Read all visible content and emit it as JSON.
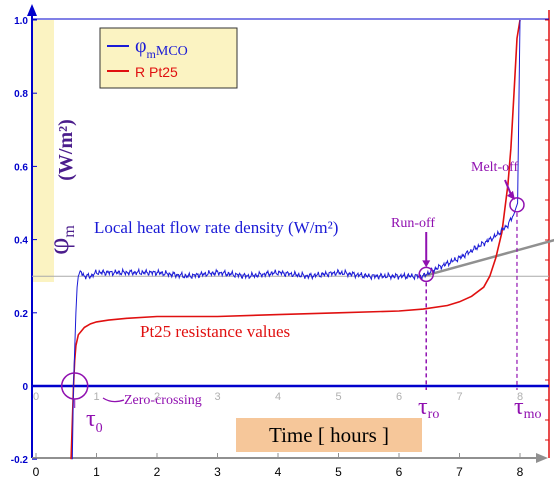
{
  "chart_data": {
    "type": "line",
    "xlim": [
      0,
      8.6
    ],
    "ylim": [
      -0.2,
      1.0
    ],
    "x_ticks": [
      "0",
      "1",
      "2",
      "3",
      "4",
      "5",
      "6",
      "7",
      "8"
    ],
    "x_inner_ticks": [
      "0",
      "1",
      "2",
      "3",
      "4",
      "5",
      "6",
      "7",
      "8"
    ],
    "y_ticks": [
      "-0.2",
      "0",
      "0.2",
      "0.4",
      "0.6",
      "0.8",
      "1.0"
    ],
    "ylabel_unit": "(W/m²)",
    "ylabel_symbol": "φ",
    "ylabel_sub": "m",
    "xlabel": "Time [ hours ]",
    "grid": false,
    "legend_position": "top-left",
    "legend": [
      {
        "symbol": "φ",
        "sub": "m",
        "label": "MCO",
        "color": "#1a1ad6"
      },
      {
        "label": "R Pt25",
        "color": "#e01010"
      }
    ],
    "colors": {
      "flow": "#1a1ad6",
      "resistance": "#e01010",
      "axis": "#0000cc",
      "annotation": "#9010b0",
      "trend": "#909090",
      "reference": "#aaaaaa",
      "label_box": "#f6c79a",
      "legend_box": "#fbf3c2",
      "ylabel_band": "#fbf3c2"
    },
    "series": [
      {
        "name": "φmMCO",
        "color": "#1a1ad6",
        "x": [
          0.6,
          0.62,
          0.64,
          0.66,
          0.68,
          0.7,
          0.72,
          0.75,
          0.8,
          0.9,
          1.0,
          1.5,
          2.0,
          2.5,
          3.0,
          3.5,
          4.0,
          4.5,
          5.0,
          5.5,
          6.0,
          6.4,
          6.6,
          7.0,
          7.2,
          7.4,
          7.6,
          7.8,
          7.9,
          7.96,
          8.0
        ],
        "y": [
          -0.2,
          0.0,
          0.1,
          0.2,
          0.27,
          0.3,
          0.31,
          0.31,
          0.3,
          0.3,
          0.31,
          0.31,
          0.31,
          0.3,
          0.31,
          0.3,
          0.31,
          0.3,
          0.31,
          0.3,
          0.3,
          0.3,
          0.32,
          0.35,
          0.37,
          0.39,
          0.41,
          0.44,
          0.47,
          0.5,
          1.0
        ]
      },
      {
        "name": "R Pt25",
        "color": "#e01010",
        "x": [
          0.58,
          0.6,
          0.62,
          0.64,
          0.66,
          0.7,
          0.8,
          0.9,
          1.0,
          1.2,
          1.5,
          2.0,
          3.0,
          4.0,
          5.0,
          6.0,
          6.4,
          6.8,
          7.0,
          7.2,
          7.4,
          7.5,
          7.6,
          7.7,
          7.8,
          7.85,
          7.9,
          7.95,
          8.0
        ],
        "y": [
          -0.2,
          -0.1,
          0.0,
          0.07,
          0.11,
          0.14,
          0.16,
          0.17,
          0.175,
          0.18,
          0.185,
          0.19,
          0.19,
          0.195,
          0.2,
          0.205,
          0.21,
          0.22,
          0.23,
          0.245,
          0.27,
          0.3,
          0.35,
          0.42,
          0.55,
          0.65,
          0.8,
          0.95,
          1.0
        ]
      }
    ],
    "trend_line": {
      "x": [
        6.4,
        8.6
      ],
      "y": [
        0.3,
        0.4
      ]
    },
    "reference_line_y": 0.3,
    "annotations": {
      "flow_label": "Local heat flow rate density (W/m²)",
      "resistance_label": "Pt25 resistance values",
      "run_off": "Run-off",
      "melt_off": "Melt-off",
      "zero_crossing": "Zero-crossing",
      "tau0": "τ",
      "tau0_sub": "0",
      "tau_ro": "τ",
      "tau_ro_sub": "ro",
      "tau_mo": "τ",
      "tau_mo_sub": "mo"
    },
    "markers": {
      "tau0_x": 0.64,
      "tau_ro_x": 6.45,
      "tau_mo_x": 7.95
    }
  }
}
